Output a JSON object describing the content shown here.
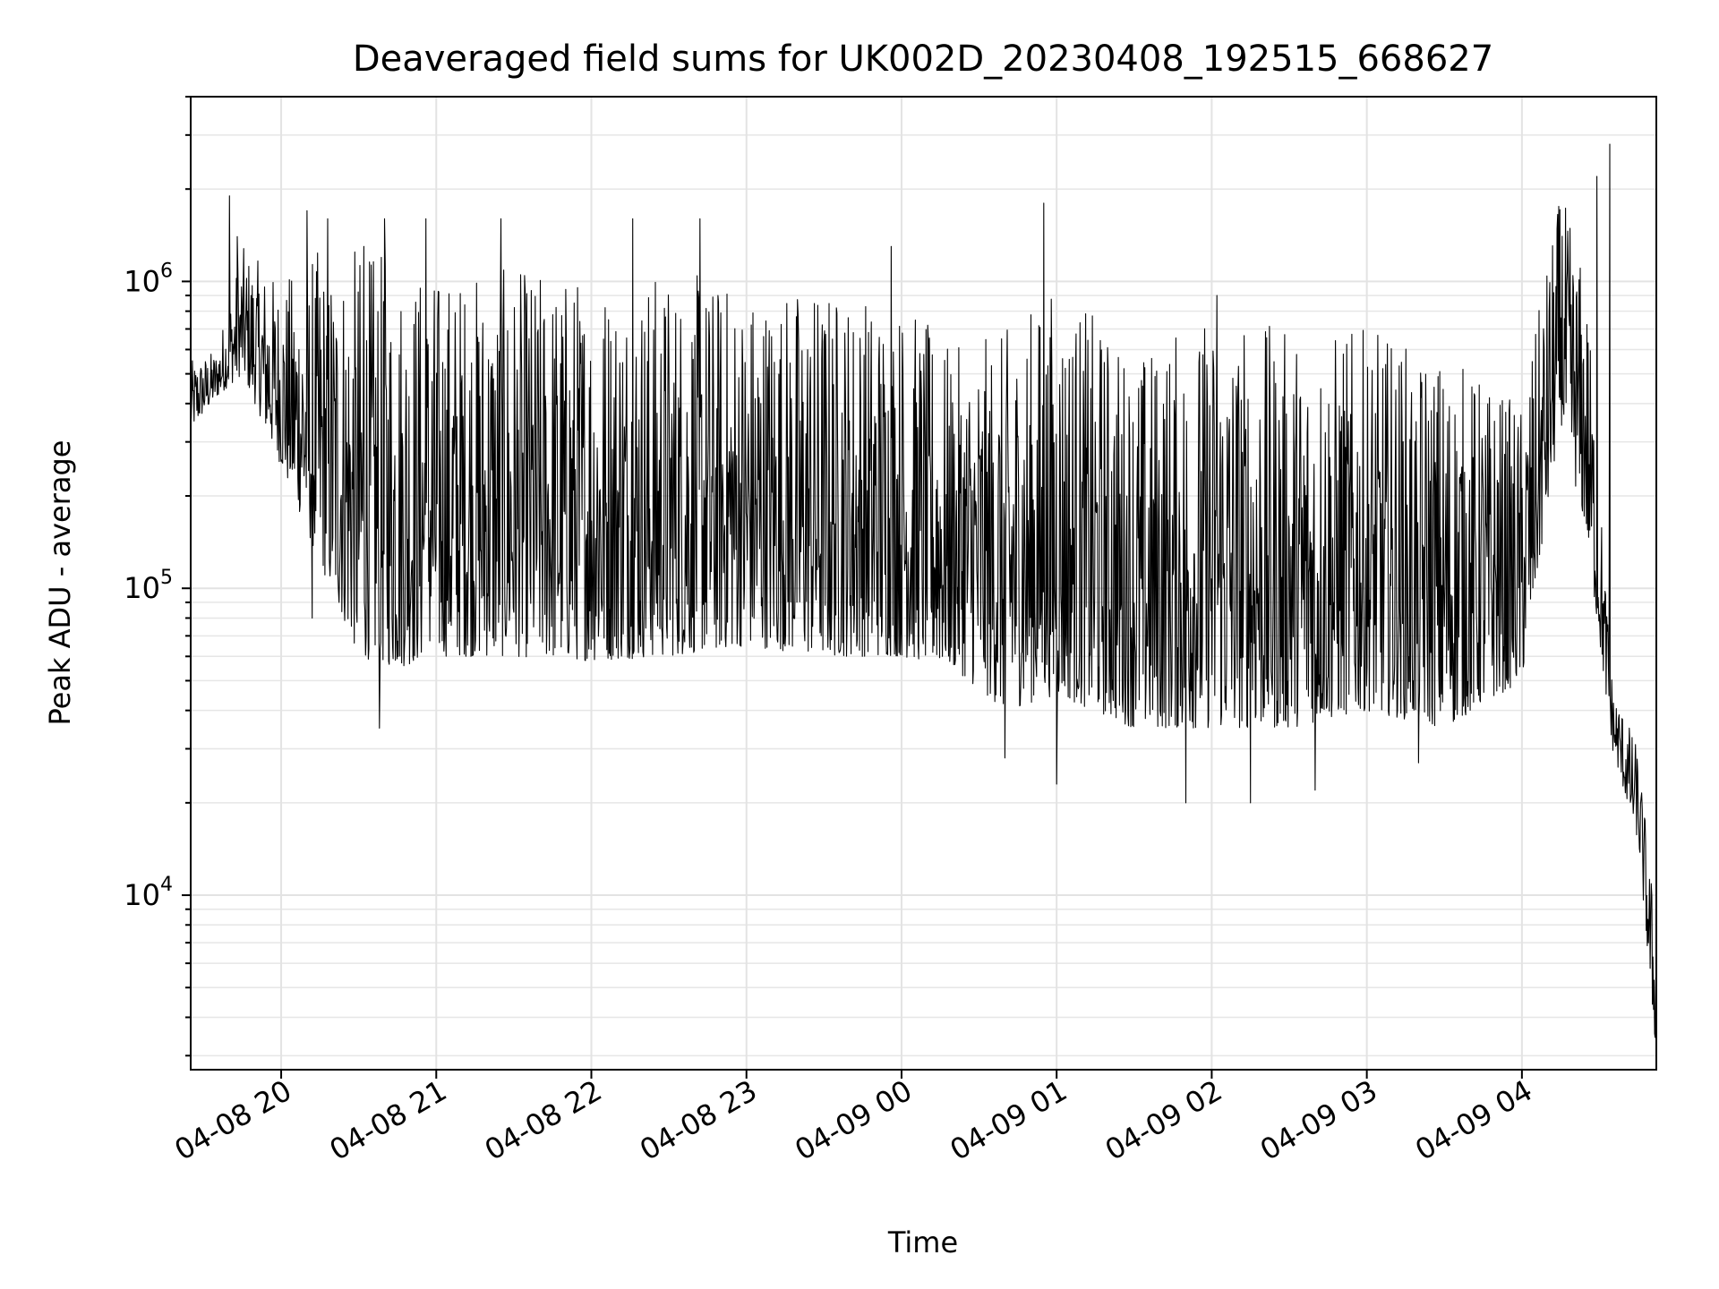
{
  "chart_data": {
    "type": "line",
    "title": "Deaveraged field sums for UK002D_20230408_192515_668627",
    "xlabel": "Time",
    "ylabel": "Peak ADU - average",
    "yscale": "log",
    "ylim": [
      2700,
      4000000
    ],
    "xlim": [
      "2023-04-08 19:25",
      "2023-04-09 04:52"
    ],
    "grid": true,
    "x_ticks": [
      {
        "t": "2023-04-08 20:00",
        "label": "04-08 20"
      },
      {
        "t": "2023-04-08 21:00",
        "label": "04-08 21"
      },
      {
        "t": "2023-04-08 22:00",
        "label": "04-08 22"
      },
      {
        "t": "2023-04-08 23:00",
        "label": "04-08 23"
      },
      {
        "t": "2023-04-09 00:00",
        "label": "04-09 00"
      },
      {
        "t": "2023-04-09 01:00",
        "label": "04-09 01"
      },
      {
        "t": "2023-04-09 02:00",
        "label": "04-09 02"
      },
      {
        "t": "2023-04-09 03:00",
        "label": "04-09 03"
      },
      {
        "t": "2023-04-09 04:00",
        "label": "04-09 04"
      }
    ],
    "y_ticks": [
      {
        "value": 10000,
        "base": "10",
        "exp": "4"
      },
      {
        "value": 100000,
        "base": "10",
        "exp": "5"
      },
      {
        "value": 1000000,
        "base": "10",
        "exp": "6"
      }
    ],
    "envelope": {
      "description_of_data": "dense noisy series; per-time lower/upper bounds read from plot",
      "x": [
        "2023-04-08 19:25",
        "2023-04-08 19:35",
        "2023-04-08 19:45",
        "2023-04-08 20:00",
        "2023-04-08 20:15",
        "2023-04-08 20:30",
        "2023-04-08 20:45",
        "2023-04-08 21:00",
        "2023-04-08 21:30",
        "2023-04-08 22:00",
        "2023-04-08 22:30",
        "2023-04-08 23:00",
        "2023-04-08 23:30",
        "2023-04-09 00:00",
        "2023-04-09 00:20",
        "2023-04-09 00:40",
        "2023-04-09 01:00",
        "2023-04-09 01:30",
        "2023-04-09 02:00",
        "2023-04-09 02:30",
        "2023-04-09 03:00",
        "2023-04-09 03:30",
        "2023-04-09 04:00",
        "2023-04-09 04:15",
        "2023-04-09 04:25",
        "2023-04-09 04:35",
        "2023-04-09 04:45",
        "2023-04-09 04:52"
      ],
      "lower": [
        330000,
        420000,
        500000,
        250000,
        120000,
        60000,
        55000,
        60000,
        60000,
        58000,
        60000,
        65000,
        60000,
        60000,
        55000,
        40000,
        45000,
        35000,
        35000,
        35000,
        40000,
        35000,
        50000,
        350000,
        150000,
        30000,
        15000,
        3000
      ],
      "upper": [
        550000,
        600000,
        1300000,
        1000000,
        1300000,
        1300000,
        1200000,
        1100000,
        1100000,
        1100000,
        1100000,
        1000000,
        1000000,
        900000,
        600000,
        700000,
        1000000,
        600000,
        800000,
        700000,
        700000,
        600000,
        400000,
        2000000,
        1000000,
        50000,
        30000,
        8000
      ]
    },
    "spikes": [
      {
        "x": "2023-04-08 19:40",
        "value": 1900000
      },
      {
        "x": "2023-04-08 19:43",
        "value": 1400000
      },
      {
        "x": "2023-04-08 20:10",
        "value": 1700000
      },
      {
        "x": "2023-04-08 20:18",
        "value": 1600000
      },
      {
        "x": "2023-04-08 20:32",
        "value": 1300000
      },
      {
        "x": "2023-04-08 20:40",
        "value": 1600000
      },
      {
        "x": "2023-04-08 20:56",
        "value": 1600000
      },
      {
        "x": "2023-04-08 21:25",
        "value": 1600000
      },
      {
        "x": "2023-04-08 22:16",
        "value": 1600000
      },
      {
        "x": "2023-04-08 22:42",
        "value": 1600000
      },
      {
        "x": "2023-04-08 23:56",
        "value": 1300000
      },
      {
        "x": "2023-04-09 00:55",
        "value": 1800000
      },
      {
        "x": "2023-04-09 02:02",
        "value": 900000
      },
      {
        "x": "2023-04-09 04:29",
        "value": 2200000
      },
      {
        "x": "2023-04-09 04:34",
        "value": 2800000
      }
    ],
    "dips": [
      {
        "x": "2023-04-08 20:12",
        "value": 80000
      },
      {
        "x": "2023-04-08 20:38",
        "value": 35000
      },
      {
        "x": "2023-04-09 00:40",
        "value": 28000
      },
      {
        "x": "2023-04-09 01:00",
        "value": 23000
      },
      {
        "x": "2023-04-09 01:50",
        "value": 20000
      },
      {
        "x": "2023-04-09 02:15",
        "value": 20000
      },
      {
        "x": "2023-04-09 02:40",
        "value": 22000
      },
      {
        "x": "2023-04-09 03:20",
        "value": 27000
      }
    ]
  }
}
